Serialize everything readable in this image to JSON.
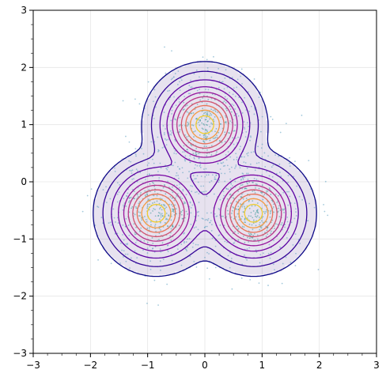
{
  "chart_data": {
    "type": "scatter",
    "title": "",
    "xlabel": "",
    "ylabel": "",
    "xlim": [
      -3,
      3
    ],
    "ylim": [
      -3,
      3
    ],
    "x_ticks": [
      -3,
      -2,
      -1,
      0,
      1,
      2,
      3
    ],
    "y_ticks": [
      -3,
      -2,
      -1,
      0,
      1,
      2,
      3
    ],
    "x_tick_labels": [
      "−3",
      "−2",
      "−1",
      "0",
      "1",
      "2",
      "3"
    ],
    "y_tick_labels": [
      "−3",
      "−2",
      "−1",
      "0",
      "1",
      "2",
      "3"
    ],
    "grid": true,
    "overlay": "kde-contours",
    "mixture_components": [
      {
        "center": [
          0.0,
          1.0
        ],
        "std": 0.38
      },
      {
        "center": [
          -0.85,
          -0.55
        ],
        "std": 0.38
      },
      {
        "center": [
          0.85,
          -0.55
        ],
        "std": 0.38
      }
    ],
    "contour_levels": [
      0.015,
      0.05,
      0.12,
      0.22,
      0.33,
      0.44,
      0.56,
      0.68,
      0.8,
      0.92
    ],
    "contour_colormap": "plasma",
    "fill_outer_region": true,
    "scatter_point_count": 1500,
    "colors": {
      "scatter": "#5a9fc0",
      "outer_fill": "#6a4c9c",
      "outer_contour": "#1d0a8a",
      "inner_contour": "#f1cc2f",
      "grid": "#e6e6e6"
    }
  }
}
